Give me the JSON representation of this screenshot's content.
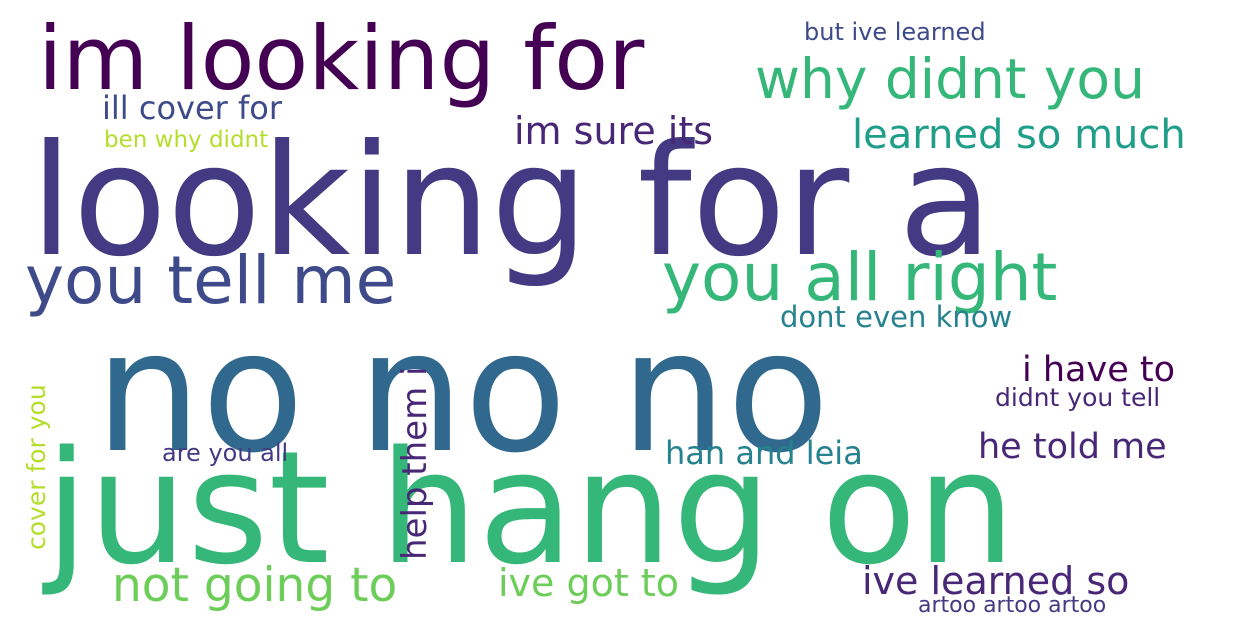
{
  "colors": {
    "background": "#ffffff",
    "palette": [
      "#440154",
      "#482777",
      "#443A83",
      "#3E4A89",
      "#31688E",
      "#26828E",
      "#1F9E89",
      "#35B779",
      "#6DCD59",
      "#B4DE2C"
    ]
  },
  "words": [
    {
      "text": "looking for a",
      "color": "#443A83",
      "orientation": "horizontal"
    },
    {
      "text": "no no no",
      "color": "#31688E",
      "orientation": "horizontal"
    },
    {
      "text": "just hang on",
      "color": "#35B779",
      "orientation": "horizontal"
    },
    {
      "text": "im looking for",
      "color": "#440154",
      "orientation": "horizontal"
    },
    {
      "text": "you tell me",
      "color": "#3E4A89",
      "orientation": "horizontal"
    },
    {
      "text": "you all right",
      "color": "#35B779",
      "orientation": "horizontal"
    },
    {
      "text": "why didnt you",
      "color": "#35B779",
      "orientation": "horizontal"
    },
    {
      "text": "learned so much",
      "color": "#1F9E89",
      "orientation": "horizontal"
    },
    {
      "text": "not going to",
      "color": "#6DCD59",
      "orientation": "horizontal"
    },
    {
      "text": "ive got to",
      "color": "#6DCD59",
      "orientation": "horizontal"
    },
    {
      "text": "ive learned so",
      "color": "#482777",
      "orientation": "horizontal"
    },
    {
      "text": "im sure its",
      "color": "#482777",
      "orientation": "horizontal"
    },
    {
      "text": "ill cover for",
      "color": "#3E4A89",
      "orientation": "horizontal"
    },
    {
      "text": "i have to",
      "color": "#440154",
      "orientation": "horizontal"
    },
    {
      "text": "he told me",
      "color": "#482777",
      "orientation": "horizontal"
    },
    {
      "text": "han and leia",
      "color": "#26828E",
      "orientation": "horizontal"
    },
    {
      "text": "dont even know",
      "color": "#26828E",
      "orientation": "horizontal"
    },
    {
      "text": "help them i",
      "color": "#482777",
      "orientation": "vertical"
    },
    {
      "text": "cover for you",
      "color": "#B4DE2C",
      "orientation": "vertical"
    },
    {
      "text": "didnt you tell",
      "color": "#482777",
      "orientation": "horizontal"
    },
    {
      "text": "but ive learned",
      "color": "#3E4A89",
      "orientation": "horizontal"
    },
    {
      "text": "artoo artoo artoo",
      "color": "#443A83",
      "orientation": "horizontal"
    },
    {
      "text": "are you all",
      "color": "#443A83",
      "orientation": "horizontal"
    },
    {
      "text": "ben why didnt",
      "color": "#B4DE2C",
      "orientation": "horizontal"
    }
  ]
}
